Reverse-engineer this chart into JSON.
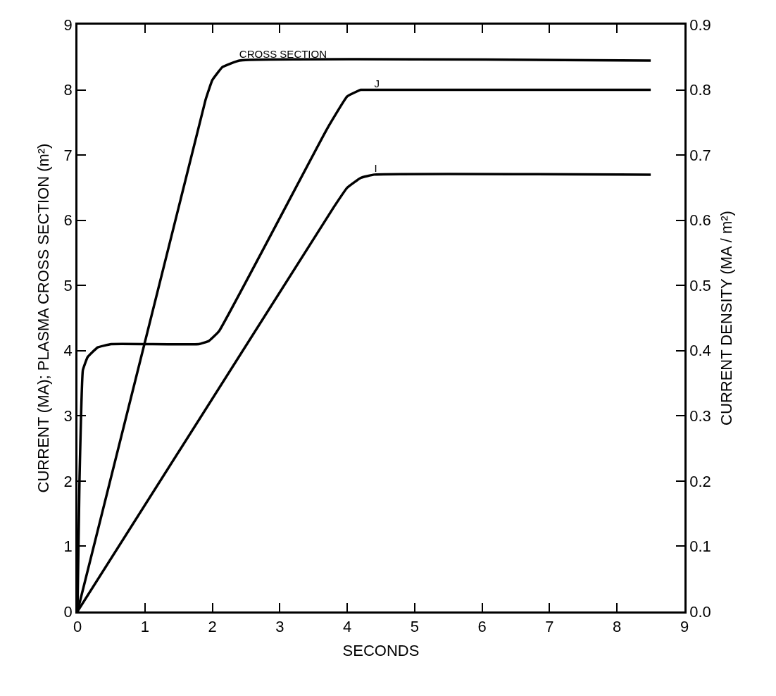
{
  "chart_data": {
    "type": "line",
    "xlabel": "SECONDS",
    "ylabel": "CURRENT (MA); PLASMA CROSS SECTION (m²)",
    "y2label": "CURRENT DENSITY (MA / m²)",
    "xlim": [
      0,
      9
    ],
    "xticks": [
      0,
      1,
      2,
      3,
      4,
      5,
      6,
      7,
      8,
      9
    ],
    "ylim": [
      0,
      9
    ],
    "yticks": [
      0,
      1,
      2,
      3,
      4,
      5,
      6,
      7,
      8,
      9
    ],
    "y2lim": [
      0,
      0.9
    ],
    "y2ticks": [
      {
        "value": 0,
        "label": "0.0"
      },
      0.1,
      0.2,
      0.3,
      0.4,
      0.5,
      0.6,
      0.7,
      0.8,
      0.9
    ],
    "legend": false,
    "marker": "none",
    "line_style": "solid",
    "series": [
      {
        "name": "CROSS SECTION",
        "color": "#000000",
        "x": [
          0,
          1.9,
          2.0,
          2.15,
          2.4,
          8.5
        ],
        "values": [
          0,
          7.85,
          8.15,
          8.35,
          8.45,
          8.45
        ]
      },
      {
        "name": "J",
        "color": "#000000",
        "axis": "y2",
        "x": [
          0,
          0.03,
          0.08,
          0.15,
          0.3,
          0.5,
          1.8,
          1.95,
          2.1,
          3.7,
          4.0,
          4.2,
          4.4,
          8.5
        ],
        "values": [
          0,
          0.2,
          0.37,
          0.39,
          0.405,
          0.41,
          0.41,
          0.415,
          0.43,
          0.74,
          0.79,
          0.8,
          0.8,
          0.8
        ]
      },
      {
        "name": "I",
        "color": "#000000",
        "x": [
          0,
          3.8,
          4.0,
          4.2,
          4.4,
          8.5
        ],
        "values": [
          0,
          6.2,
          6.5,
          6.65,
          6.7,
          6.7
        ]
      }
    ]
  }
}
